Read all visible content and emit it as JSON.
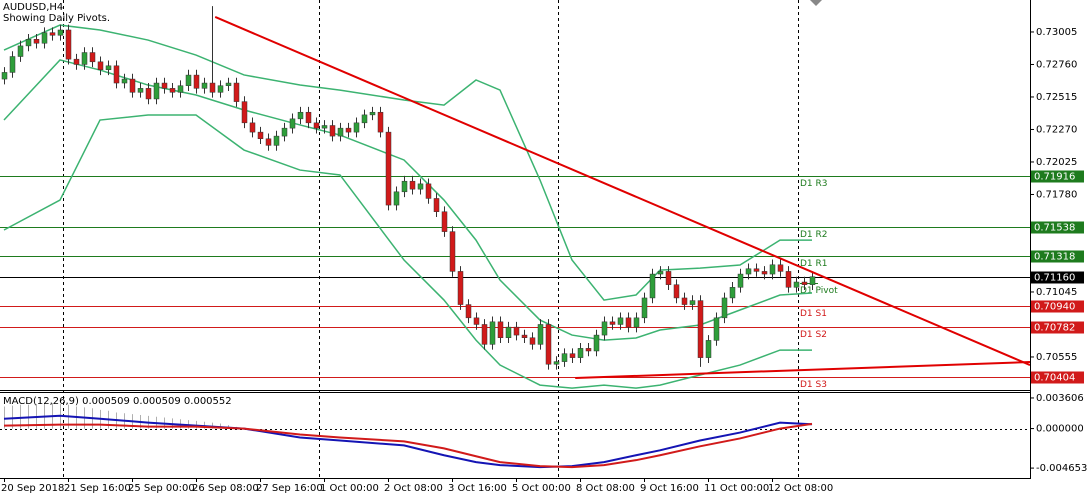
{
  "chart_data": [
    {
      "type": "candlestick",
      "title": "AUDUSD,H4",
      "subtitle": "Showing Daily Pivots.",
      "categories": [
        "20 Sep 2018",
        null,
        null,
        null,
        null,
        null,
        null,
        null,
        "21 Sep 16:00",
        null,
        null,
        null,
        null,
        null,
        null,
        null,
        "25 Sep 00:00",
        null,
        null,
        null,
        null,
        null,
        null,
        null,
        "26 Sep 08:00",
        null,
        null,
        null,
        null,
        null,
        null,
        null,
        "27 Sep 16:00",
        null,
        null,
        null,
        null,
        null,
        null,
        null,
        "1 Oct 00:00",
        null,
        null,
        null,
        null,
        null,
        null,
        null,
        "2 Oct 08:00",
        null,
        null,
        null,
        null,
        null,
        null,
        null,
        "3 Oct 16:00",
        null,
        null,
        null,
        null,
        null,
        null,
        null,
        "5 Oct 00:00",
        null,
        null,
        null,
        null,
        null,
        null,
        null,
        "8 Oct 08:00",
        null,
        null,
        null,
        null,
        null,
        null,
        null,
        "9 Oct 16:00",
        null,
        null,
        null,
        null,
        null,
        null,
        null,
        "11 Oct 00:00",
        null,
        null,
        null,
        null,
        null,
        null,
        null,
        "12 Oct 08:00",
        null,
        null,
        null,
        null,
        null
      ],
      "open": [
        0.7265,
        0.727,
        0.7282,
        0.729,
        0.7295,
        0.7292,
        0.73,
        0.7298,
        0.7302,
        0.728,
        0.7276,
        0.7285,
        0.7278,
        0.7272,
        0.7275,
        0.7262,
        0.7265,
        0.7255,
        0.7258,
        0.725,
        0.7262,
        0.7258,
        0.7255,
        0.726,
        0.7268,
        0.7258,
        0.7262,
        0.7255,
        0.726,
        0.7262,
        0.7248,
        0.7232,
        0.7225,
        0.722,
        0.7215,
        0.7222,
        0.7228,
        0.7235,
        0.724,
        0.7232,
        0.7228,
        0.723,
        0.7222,
        0.7228,
        0.7225,
        0.7232,
        0.7238,
        0.724,
        0.7225,
        0.717,
        0.718,
        0.7188,
        0.7182,
        0.7186,
        0.7175,
        0.7165,
        0.715,
        0.712,
        0.7095,
        0.7085,
        0.708,
        0.7065,
        0.7082,
        0.707,
        0.7078,
        0.7072,
        0.707,
        0.7065,
        0.708,
        0.705,
        0.7052,
        0.7058,
        0.7055,
        0.7062,
        0.706,
        0.7072,
        0.7082,
        0.708,
        0.7085,
        0.7078,
        0.7085,
        0.71,
        0.7118,
        0.712,
        0.711,
        0.71,
        0.7095,
        0.7098,
        0.7055,
        0.7068,
        0.7085,
        0.71,
        0.7108,
        0.7118,
        0.7122,
        0.712,
        0.7118,
        0.7125,
        0.712,
        0.7108,
        0.7112,
        0.711
      ],
      "high": [
        0.7274,
        0.7286,
        0.7294,
        0.7299,
        0.7299,
        0.7304,
        0.7304,
        0.7306,
        0.7306,
        0.7284,
        0.7289,
        0.7289,
        0.7282,
        0.7279,
        0.7279,
        0.7269,
        0.7269,
        0.7262,
        0.7262,
        0.7266,
        0.7266,
        0.7262,
        0.7264,
        0.7272,
        0.7272,
        0.7266,
        0.732,
        0.7264,
        0.7266,
        0.7266,
        0.7252,
        0.7236,
        0.7229,
        0.7224,
        0.7226,
        0.7232,
        0.7239,
        0.7244,
        0.7244,
        0.7236,
        0.7234,
        0.7234,
        0.7232,
        0.7232,
        0.7236,
        0.7242,
        0.7244,
        0.7244,
        0.7229,
        0.7184,
        0.7192,
        0.7192,
        0.719,
        0.719,
        0.7179,
        0.7169,
        0.7154,
        0.7124,
        0.7099,
        0.7089,
        0.7084,
        0.7086,
        0.7086,
        0.7082,
        0.7082,
        0.7076,
        0.7074,
        0.7084,
        0.7084,
        0.7056,
        0.7062,
        0.7062,
        0.7066,
        0.7066,
        0.7076,
        0.7086,
        0.7086,
        0.7089,
        0.7089,
        0.7089,
        0.7104,
        0.7122,
        0.7124,
        0.7124,
        0.7114,
        0.7104,
        0.7102,
        0.7102,
        0.7072,
        0.7089,
        0.7104,
        0.7112,
        0.7122,
        0.7126,
        0.7126,
        0.7124,
        0.7129,
        0.7129,
        0.7124,
        0.7116,
        0.7116,
        0.712
      ],
      "low": [
        0.7261,
        0.7266,
        0.7278,
        0.7286,
        0.7288,
        0.7288,
        0.7294,
        0.7294,
        0.7276,
        0.7272,
        0.7272,
        0.7274,
        0.7268,
        0.7268,
        0.7258,
        0.7258,
        0.7251,
        0.7251,
        0.7246,
        0.7246,
        0.7254,
        0.7251,
        0.7251,
        0.7256,
        0.7254,
        0.7254,
        0.7251,
        0.7251,
        0.7256,
        0.7244,
        0.7228,
        0.7221,
        0.7216,
        0.7211,
        0.7211,
        0.7218,
        0.7224,
        0.7231,
        0.7228,
        0.7224,
        0.7224,
        0.7218,
        0.7218,
        0.7221,
        0.7221,
        0.7228,
        0.7234,
        0.7221,
        0.7166,
        0.7166,
        0.7176,
        0.7178,
        0.7178,
        0.7171,
        0.7161,
        0.7146,
        0.7116,
        0.7091,
        0.7081,
        0.7076,
        0.7061,
        0.7061,
        0.7066,
        0.7066,
        0.7068,
        0.7066,
        0.7061,
        0.7061,
        0.7046,
        0.7046,
        0.7048,
        0.7051,
        0.7051,
        0.7056,
        0.7056,
        0.7068,
        0.7076,
        0.7076,
        0.7074,
        0.7074,
        0.7081,
        0.7096,
        0.7114,
        0.7106,
        0.7096,
        0.7091,
        0.7091,
        0.7048,
        0.7051,
        0.7064,
        0.7081,
        0.7096,
        0.7104,
        0.7114,
        0.7116,
        0.7114,
        0.7114,
        0.7116,
        0.7104,
        0.7104,
        0.7106,
        0.7106
      ],
      "close": [
        0.727,
        0.7282,
        0.729,
        0.7295,
        0.7292,
        0.73,
        0.7298,
        0.7302,
        0.728,
        0.7276,
        0.7285,
        0.7278,
        0.7272,
        0.7275,
        0.7262,
        0.7265,
        0.7255,
        0.7258,
        0.725,
        0.7262,
        0.7258,
        0.7255,
        0.726,
        0.7268,
        0.7258,
        0.7262,
        0.7255,
        0.726,
        0.7262,
        0.7248,
        0.7232,
        0.7225,
        0.722,
        0.7215,
        0.7222,
        0.7228,
        0.7235,
        0.724,
        0.7232,
        0.7228,
        0.723,
        0.7222,
        0.7228,
        0.7225,
        0.7232,
        0.7238,
        0.724,
        0.7225,
        0.717,
        0.718,
        0.7188,
        0.7182,
        0.7186,
        0.7175,
        0.7165,
        0.715,
        0.712,
        0.7095,
        0.7085,
        0.708,
        0.7065,
        0.7082,
        0.707,
        0.7078,
        0.7072,
        0.707,
        0.7065,
        0.708,
        0.705,
        0.7052,
        0.7058,
        0.7055,
        0.7062,
        0.706,
        0.7072,
        0.7082,
        0.708,
        0.7085,
        0.7078,
        0.7085,
        0.71,
        0.7118,
        0.712,
        0.711,
        0.71,
        0.7095,
        0.7098,
        0.7055,
        0.7068,
        0.7085,
        0.71,
        0.7108,
        0.7118,
        0.7122,
        0.712,
        0.7118,
        0.7125,
        0.712,
        0.7108,
        0.7112,
        0.711,
        0.7116
      ],
      "up_color": "#2e9e3a",
      "down_color": "#d11a1a",
      "wick_color": "#333333",
      "ylim": [
        0.70306,
        0.73246
      ],
      "yticks": [
        {
          "value": 0.73005,
          "label": "0.73005"
        },
        {
          "value": 0.7276,
          "label": "0.72760"
        },
        {
          "value": 0.72515,
          "label": "0.72515"
        },
        {
          "value": 0.7227,
          "label": "0.72270"
        },
        {
          "value": 0.72025,
          "label": "0.72025"
        },
        {
          "value": 0.7178,
          "label": "0.71780"
        },
        {
          "value": 0.71045,
          "label": "0.71045"
        },
        {
          "value": 0.70555,
          "label": "0.70555"
        }
      ],
      "bands": {
        "x": [
          0,
          7,
          12,
          18,
          24,
          30,
          37,
          42,
          50,
          55,
          59,
          62,
          67,
          71,
          75,
          79,
          82,
          87,
          92,
          97,
          101
        ],
        "series": [
          {
            "color": "#3cb371",
            "values": [
              0.72869,
              0.73057,
              0.7302,
              0.72944,
              0.72831,
              0.72681,
              0.72605,
              0.72567,
              0.72492,
              0.72454,
              0.72643,
              0.72567,
              0.71889,
              0.71286,
              0.70984,
              0.71022,
              0.7121,
              0.71225,
              0.71248,
              0.71436,
              0.71436
            ]
          },
          {
            "color": "#3cb371",
            "values": [
              0.72341,
              0.72794,
              0.72718,
              0.72605,
              0.7253,
              0.72417,
              0.72304,
              0.72228,
              0.7204,
              0.71738,
              0.71436,
              0.71135,
              0.70833,
              0.7072,
              0.70682,
              0.70698,
              0.70758,
              0.70796,
              0.70909,
              0.71022,
              0.71037
            ]
          },
          {
            "color": "#3cb371",
            "values": [
              0.71512,
              0.71738,
              0.72341,
              0.72379,
              0.72379,
              0.72115,
              0.71964,
              0.71927,
              0.71286,
              0.70984,
              0.70682,
              0.70494,
              0.70343,
              0.7032,
              0.70343,
              0.7032,
              0.70343,
              0.70419,
              0.70494,
              0.70607,
              0.70607
            ]
          }
        ]
      },
      "trendlines": [
        {
          "color": "#e00000",
          "x": [
            26.4,
            128.25
          ],
          "y": [
            0.73118,
            0.70494
          ]
        },
        {
          "color": "#e00000",
          "x": [
            71.4,
            128.25
          ],
          "y": [
            0.70396,
            0.70517
          ]
        }
      ],
      "pivots": [
        {
          "name": "D1 R3",
          "value": 0.71916,
          "label": "0.71916",
          "color": "#1e7b1e"
        },
        {
          "name": "D1 R2",
          "value": 0.71538,
          "label": "0.71538",
          "color": "#1e7b1e"
        },
        {
          "name": "D1 R1",
          "value": 0.71318,
          "label": "0.71318",
          "color": "#1e7b1e"
        },
        {
          "name": "D1 Pivot",
          "value": 0.71113,
          "color": "#1e7b1e"
        },
        {
          "name": "D1 S1",
          "value": 0.7094,
          "label": "0.70940",
          "color": "#d11a1a"
        },
        {
          "name": "D1 S2",
          "value": 0.70782,
          "label": "0.70782",
          "color": "#d11a1a"
        },
        {
          "name": "D1 S3",
          "value": 0.70404,
          "label": "0.70404",
          "color": "#d11a1a"
        }
      ],
      "current_price": {
        "value": 0.7116,
        "label": "0.71160",
        "color": "#000000"
      }
    },
    {
      "type": "macd",
      "label": "MACD(12,26,9) 0.000509 0.000509 0.000552",
      "ylim": [
        -0.00582,
        0.00419
      ],
      "yticks": [
        0.003606,
        {
          "value": 0,
          "label": "0.000000"
        },
        -0.004653
      ],
      "histogram": [
        0.0026,
        0.0027,
        0.0028,
        0.0028,
        0.0029,
        0.003,
        0.003,
        0.0029,
        0.0028,
        0.0026,
        0.0025,
        0.0024,
        0.0022,
        0.0021,
        0.0019,
        0.0018,
        0.0017,
        0.0016,
        0.0015,
        0.0014,
        0.0013,
        0.0012,
        0.0011,
        0.001,
        0.0009,
        0.0008,
        0.0007,
        0.0006,
        0.0004,
        0.0002
      ],
      "histogram_color": "#b0b0b0",
      "x": [
        0,
        7,
        12,
        18,
        24,
        30,
        37,
        42,
        50,
        55,
        59,
        62,
        67,
        71,
        75,
        79,
        82,
        87,
        92,
        97,
        101
      ],
      "series": [
        {
          "color": "#1414b4",
          "values": [
            0.00116,
            0.00151,
            0.00116,
            0.0007,
            0.00035,
            0,
            -0.00105,
            -0.0014,
            -0.00198,
            -0.00314,
            -0.00395,
            -0.0043,
            -0.00454,
            -0.00442,
            -0.00395,
            -0.00314,
            -0.00256,
            -0.0014,
            -0.00047,
            0.0007,
            0.000509
          ]
        },
        {
          "color": "#d11a1a",
          "values": [
            0.00035,
            0.00047,
            0.00047,
            0.00023,
            0.00023,
            0,
            -0.0007,
            -0.00105,
            -0.00151,
            -0.00233,
            -0.00326,
            -0.00395,
            -0.00442,
            -0.00454,
            -0.0043,
            -0.00372,
            -0.00314,
            -0.00209,
            -0.00116,
            0,
            0.000552
          ]
        }
      ]
    }
  ]
}
